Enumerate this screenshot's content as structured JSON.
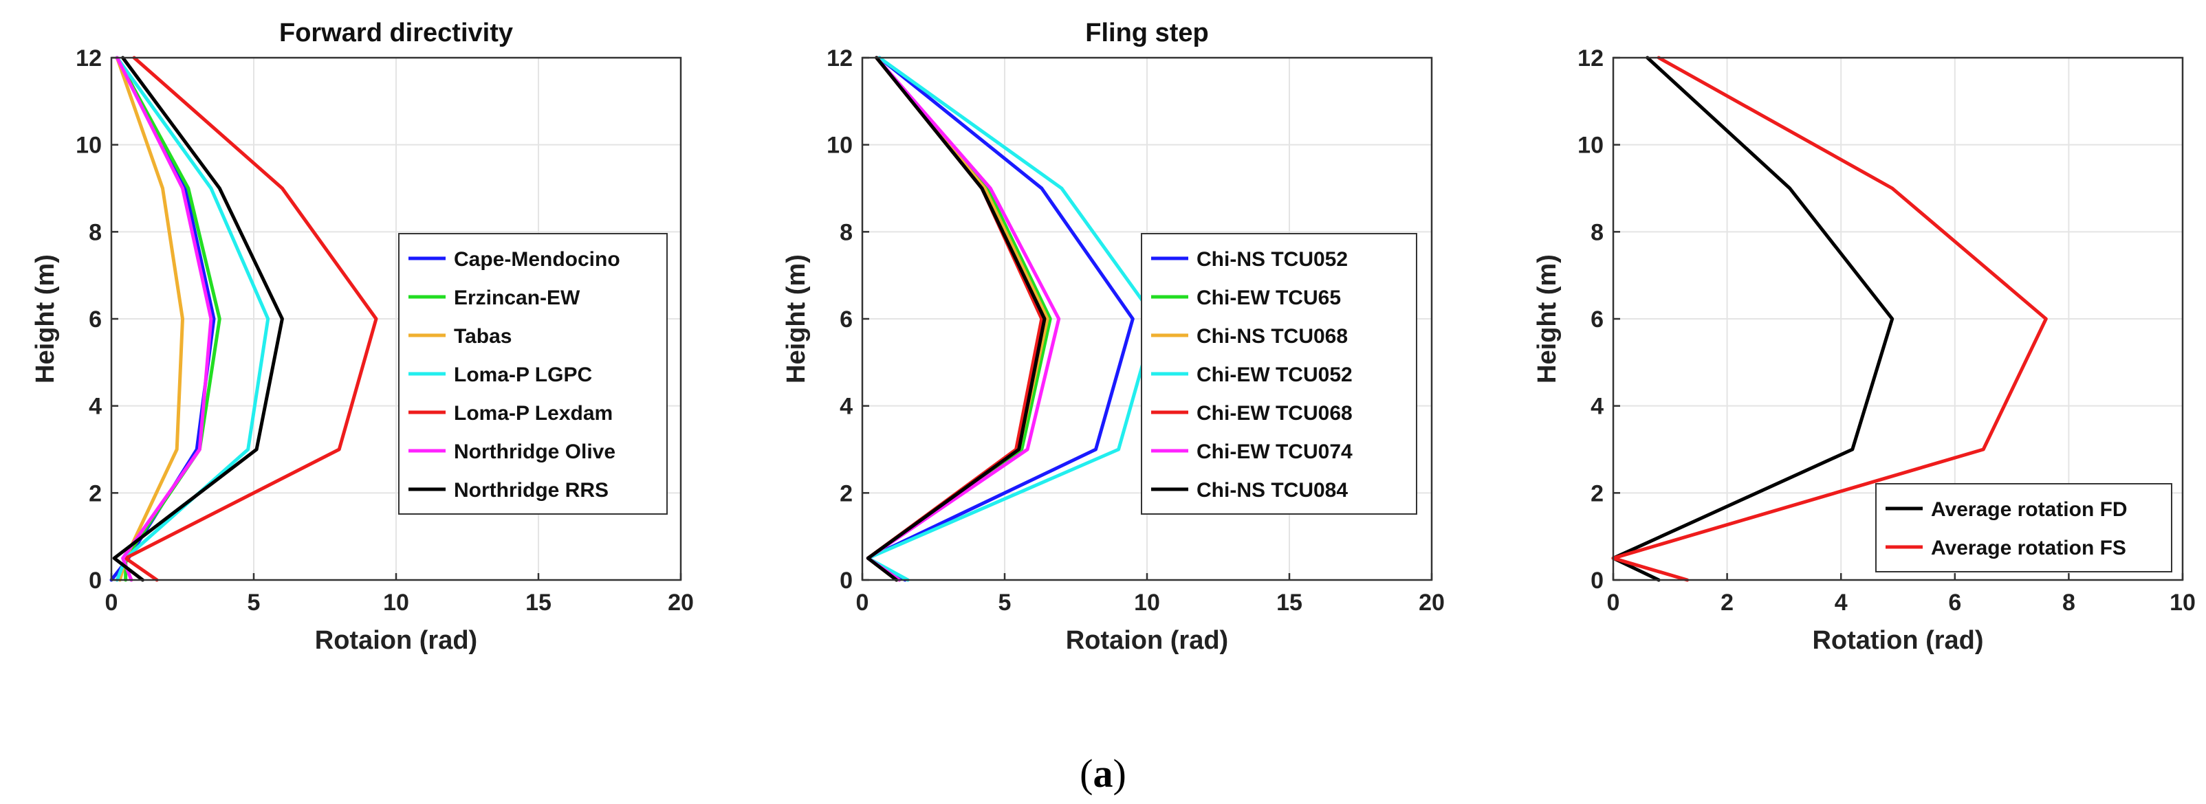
{
  "colors": {
    "blue": "#1a1aff",
    "green": "#22dd22",
    "orange": "#f0b030",
    "cyan": "#22eeee",
    "red": "#ee1c1c",
    "magenta": "#ff22ff",
    "black": "#000000"
  },
  "chart_data": [
    {
      "type": "line",
      "title": "Forward directivity",
      "xlabel": "Rotaion (rad)",
      "ylabel": "Height (m)",
      "xlim": [
        0,
        20
      ],
      "ylim": [
        0,
        12
      ],
      "xticks": [
        "0",
        "5",
        "10",
        "15",
        "20"
      ],
      "yticks": [
        "0",
        "2",
        "4",
        "6",
        "8",
        "10",
        "12"
      ],
      "grid": true,
      "legend_position": "right-center",
      "series": [
        {
          "name": "Cape-Mendocino",
          "color": "blue",
          "x": [
            0.0,
            0.6,
            3.0,
            3.6,
            2.6,
            0.2
          ],
          "y": [
            0,
            0.5,
            3,
            6,
            9,
            12
          ]
        },
        {
          "name": "Erzincan-EW",
          "color": "green",
          "x": [
            0.5,
            0.5,
            3.1,
            3.8,
            2.7,
            0.2
          ],
          "y": [
            0,
            0.5,
            3,
            6,
            9,
            12
          ]
        },
        {
          "name": "Tabas",
          "color": "orange",
          "x": [
            0.3,
            0.5,
            2.3,
            2.5,
            1.8,
            0.2
          ],
          "y": [
            0,
            0.5,
            3,
            6,
            9,
            12
          ]
        },
        {
          "name": "Loma-P LGPC",
          "color": "cyan",
          "x": [
            0.2,
            0.5,
            4.8,
            5.5,
            3.5,
            0.2
          ],
          "y": [
            0,
            0.5,
            3,
            6,
            9,
            12
          ]
        },
        {
          "name": "Loma-P Lexdam",
          "color": "red",
          "x": [
            1.6,
            0.5,
            8.0,
            9.3,
            6.0,
            0.8
          ],
          "y": [
            0,
            0.5,
            3,
            6,
            9,
            12
          ]
        },
        {
          "name": "Northridge Olive",
          "color": "magenta",
          "x": [
            0.7,
            0.4,
            3.1,
            3.5,
            2.5,
            0.2
          ],
          "y": [
            0,
            0.5,
            3,
            6,
            9,
            12
          ]
        },
        {
          "name": "Northridge RRS",
          "color": "black",
          "x": [
            1.1,
            0.1,
            5.1,
            6.0,
            3.8,
            0.4
          ],
          "y": [
            0,
            0.5,
            3,
            6,
            9,
            12
          ]
        }
      ]
    },
    {
      "type": "line",
      "title": "Fling step",
      "xlabel": "Rotaion (rad)",
      "ylabel": "Height (m)",
      "xlim": [
        0,
        20
      ],
      "ylim": [
        0,
        12
      ],
      "xticks": [
        "0",
        "5",
        "10",
        "15",
        "20"
      ],
      "yticks": [
        "0",
        "2",
        "4",
        "6",
        "8",
        "10",
        "12"
      ],
      "grid": true,
      "legend_position": "right-center",
      "series": [
        {
          "name": "Chi-NS TCU052",
          "color": "blue",
          "x": [
            1.5,
            0.2,
            8.2,
            9.5,
            6.3,
            0.6
          ],
          "y": [
            0,
            0.5,
            3,
            6,
            9,
            12
          ]
        },
        {
          "name": "Chi-EW TCU65",
          "color": "green",
          "x": [
            1.3,
            0.2,
            5.6,
            6.6,
            4.4,
            0.5
          ],
          "y": [
            0,
            0.5,
            3,
            6,
            9,
            12
          ]
        },
        {
          "name": "Chi-NS TCU068",
          "color": "orange",
          "x": [
            1.3,
            0.2,
            5.5,
            6.5,
            4.3,
            0.5
          ],
          "y": [
            0,
            0.5,
            3,
            6,
            9,
            12
          ]
        },
        {
          "name": "Chi-EW TCU052",
          "color": "cyan",
          "x": [
            1.6,
            0.2,
            9.0,
            10.3,
            7.0,
            0.6
          ],
          "y": [
            0,
            0.5,
            3,
            6,
            9,
            12
          ]
        },
        {
          "name": "Chi-EW TCU068",
          "color": "red",
          "x": [
            1.2,
            0.2,
            5.4,
            6.3,
            4.2,
            0.5
          ],
          "y": [
            0,
            0.5,
            3,
            6,
            9,
            12
          ]
        },
        {
          "name": "Chi-EW TCU074",
          "color": "magenta",
          "x": [
            1.3,
            0.2,
            5.8,
            6.9,
            4.5,
            0.5
          ],
          "y": [
            0,
            0.5,
            3,
            6,
            9,
            12
          ]
        },
        {
          "name": "Chi-NS TCU084",
          "color": "black",
          "x": [
            1.2,
            0.2,
            5.5,
            6.4,
            4.2,
            0.5
          ],
          "y": [
            0,
            0.5,
            3,
            6,
            9,
            12
          ]
        }
      ]
    },
    {
      "type": "line",
      "title": "",
      "xlabel": "Rotation (rad)",
      "ylabel": "Height (m)",
      "xlim": [
        0,
        10
      ],
      "ylim": [
        0,
        12
      ],
      "xticks": [
        "0",
        "2",
        "4",
        "6",
        "8",
        "10"
      ],
      "yticks": [
        "0",
        "2",
        "4",
        "6",
        "8",
        "10",
        "12"
      ],
      "grid": true,
      "legend_position": "bottom-right",
      "series": [
        {
          "name": "Average rotation FD",
          "color": "black",
          "x": [
            0.8,
            0.0,
            4.2,
            4.9,
            3.1,
            0.6
          ],
          "y": [
            0,
            0.5,
            3,
            6,
            9,
            12
          ]
        },
        {
          "name": "Average rotation FS",
          "color": "red",
          "x": [
            1.3,
            0.0,
            6.5,
            7.6,
            4.9,
            0.8
          ],
          "y": [
            0,
            0.5,
            3,
            6,
            9,
            12
          ]
        }
      ]
    }
  ],
  "caption": {
    "open": "(",
    "letter": "a",
    "close": ")"
  }
}
